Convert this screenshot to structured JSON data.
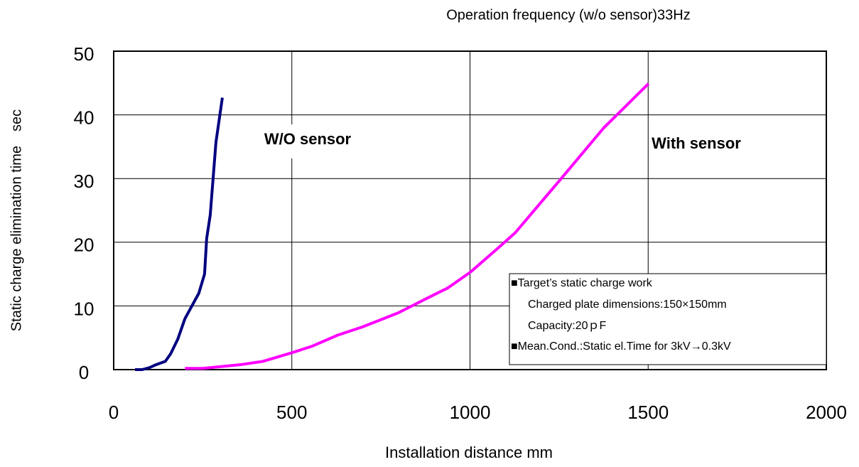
{
  "chart_data": {
    "type": "line",
    "title": "Operation frequency (w/o sensor)33Hz",
    "x_label": "Installation distance mm",
    "y_label": "Static charge elimination time　sec",
    "xlim": [
      0,
      2000
    ],
    "xticks": [
      0,
      500,
      1000,
      1500,
      2000
    ],
    "ylim": [
      0,
      50
    ],
    "yticks": [
      0,
      10,
      20,
      30,
      40,
      50
    ],
    "grid": true,
    "series": [
      {
        "name": "W/O sensor",
        "color": "#000080",
        "x": [
          60,
          80,
          100,
          120,
          145,
          160,
          180,
          200,
          239,
          255,
          261,
          271,
          287,
          305
        ],
        "values": [
          0,
          0,
          0.3,
          0.8,
          1.3,
          2.5,
          4.8,
          8,
          12,
          15,
          20.6,
          24.3,
          35.7,
          42.7
        ]
      },
      {
        "name": "With sensor",
        "color": "#ff00ff",
        "x": [
          200,
          250,
          359,
          419,
          503,
          558,
          628,
          698,
          798,
          897,
          937,
          1001,
          1077,
          1127,
          1256,
          1376,
          1501
        ],
        "values": [
          0.2,
          0.2,
          0.8,
          1.3,
          2.7,
          3.7,
          5.4,
          6.7,
          8.9,
          11.7,
          12.8,
          15.3,
          19,
          21.5,
          30,
          38,
          44.9
        ]
      }
    ],
    "note": [
      "■Target’s static charge work",
      "Charged plate dimensions:150×150mm",
      "Capacity:20ｐF",
      "■Mean.Cond.:Static el.Time for 3kV→0.3kV"
    ]
  }
}
